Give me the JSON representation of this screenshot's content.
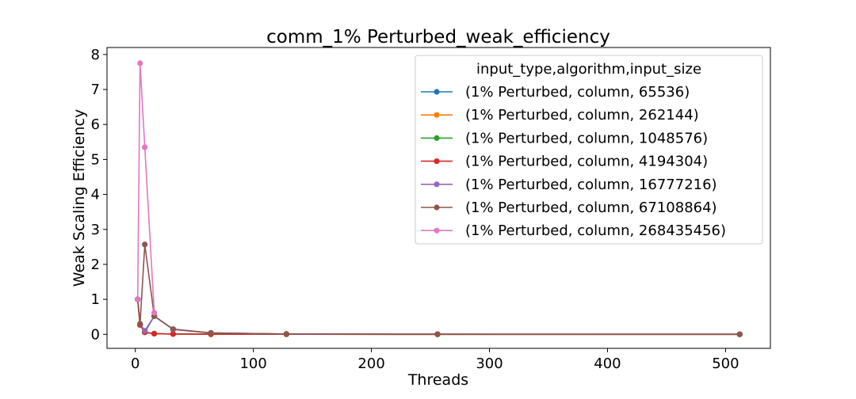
{
  "chart_data": {
    "type": "line",
    "title": "comm_1% Perturbed_weak_efficiency",
    "xlabel": "Threads",
    "ylabel": "Weak Scaling Efficiency",
    "xlim": [
      -24,
      538
    ],
    "ylim": [
      -0.4,
      8.2
    ],
    "xticks": [
      0,
      100,
      200,
      300,
      400,
      500
    ],
    "yticks": [
      0,
      1,
      2,
      3,
      4,
      5,
      6,
      7,
      8
    ],
    "grid": false,
    "legend": {
      "title": "input_type,algorithm,input_size",
      "position": "upper right"
    },
    "series": [
      {
        "name": "(1% Perturbed, column, 65536)",
        "color": "#1f77b4",
        "x": [
          2,
          4,
          8,
          16,
          32,
          64,
          128,
          256,
          512
        ],
        "y": [
          1.0,
          0.27,
          0.06,
          0.52,
          0.14,
          0.04,
          0.01,
          0.005,
          0.002
        ]
      },
      {
        "name": "(1% Perturbed, column, 262144)",
        "color": "#ff7f0e",
        "x": [
          2,
          4,
          8,
          16,
          32,
          64,
          128,
          256,
          512
        ],
        "y": [
          1.0,
          0.27,
          0.06,
          0.02,
          0.01,
          0.004,
          0.002,
          0.001,
          0.0005
        ]
      },
      {
        "name": "(1% Perturbed, column, 1048576)",
        "color": "#2ca02c",
        "x": [
          2,
          4,
          8,
          16,
          32,
          64,
          128,
          256,
          512
        ],
        "y": [
          1.0,
          0.27,
          0.06,
          0.02,
          0.01,
          0.004,
          0.002,
          0.001,
          0.0005
        ]
      },
      {
        "name": "(1% Perturbed, column, 4194304)",
        "color": "#d62728",
        "x": [
          2,
          4,
          8,
          16,
          32,
          64,
          128,
          256,
          512
        ],
        "y": [
          1.0,
          0.27,
          0.06,
          0.02,
          0.01,
          0.004,
          0.002,
          0.001,
          0.0005
        ]
      },
      {
        "name": "(1% Perturbed, column, 16777216)",
        "color": "#9467bd",
        "x": [
          2,
          4,
          8,
          16,
          32,
          64,
          128,
          256,
          512
        ],
        "y": [
          1.0,
          0.3,
          0.1,
          0.52,
          0.14,
          0.04,
          0.01,
          0.005,
          0.002
        ]
      },
      {
        "name": "(1% Perturbed, column, 67108864)",
        "color": "#8c564b",
        "x": [
          2,
          4,
          8,
          16,
          32,
          64,
          128,
          256,
          512
        ],
        "y": [
          1.0,
          0.3,
          2.57,
          0.52,
          0.15,
          0.04,
          0.01,
          0.005,
          0.002
        ]
      },
      {
        "name": "(1% Perturbed, column, 268435456)",
        "color": "#e377c2",
        "x": [
          2,
          4,
          8,
          16
        ],
        "y": [
          1.0,
          7.75,
          5.35,
          0.62
        ]
      }
    ]
  }
}
